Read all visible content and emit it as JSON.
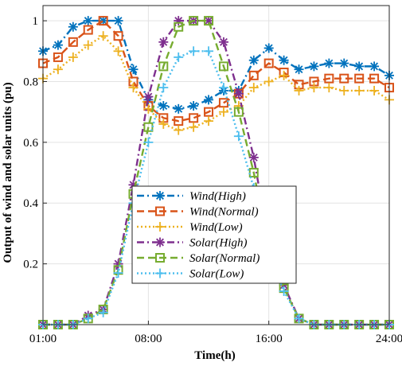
{
  "chart_data": {
    "type": "line",
    "xlabel": "Time(h)",
    "ylabel": "Output of wind and solar units (pu)",
    "x": [
      1,
      2,
      3,
      4,
      5,
      6,
      7,
      8,
      9,
      10,
      11,
      12,
      13,
      14,
      15,
      16,
      17,
      18,
      19,
      20,
      21,
      22,
      23,
      24
    ],
    "xlim": [
      1,
      24
    ],
    "ylim": [
      0,
      1.05
    ],
    "xticks": [
      {
        "value": 1,
        "label": "01:00"
      },
      {
        "value": 8,
        "label": "08:00"
      },
      {
        "value": 16,
        "label": "16:00"
      },
      {
        "value": 24,
        "label": "24:00"
      }
    ],
    "yticks": [
      {
        "value": 0.2,
        "label": "0.2"
      },
      {
        "value": 0.4,
        "label": "0.4"
      },
      {
        "value": 0.6,
        "label": "0.6"
      },
      {
        "value": 0.8,
        "label": "0.8"
      },
      {
        "value": 1,
        "label": "1"
      }
    ],
    "grid": true,
    "legend_position": "center-left",
    "series": [
      {
        "name": "Wind(High)",
        "color": "#0072BD",
        "dash": "dash-dot",
        "marker": "asterisk",
        "values": [
          0.9,
          0.92,
          0.98,
          1.0,
          1.0,
          1.0,
          0.84,
          0.74,
          0.72,
          0.71,
          0.72,
          0.74,
          0.77,
          0.77,
          0.87,
          0.91,
          0.87,
          0.84,
          0.85,
          0.86,
          0.86,
          0.85,
          0.85,
          0.82
        ]
      },
      {
        "name": "Wind(Normal)",
        "color": "#D95319",
        "dash": "dash",
        "marker": "square",
        "values": [
          0.86,
          0.88,
          0.93,
          0.97,
          1.0,
          0.95,
          0.8,
          0.72,
          0.68,
          0.67,
          0.68,
          0.7,
          0.73,
          0.76,
          0.82,
          0.86,
          0.83,
          0.79,
          0.8,
          0.81,
          0.81,
          0.81,
          0.81,
          0.78
        ]
      },
      {
        "name": "Wind(Low)",
        "color": "#EDB120",
        "dash": "dot",
        "marker": "plus",
        "values": [
          0.81,
          0.84,
          0.88,
          0.92,
          0.95,
          0.9,
          0.78,
          0.71,
          0.66,
          0.64,
          0.65,
          0.67,
          0.7,
          0.72,
          0.78,
          0.8,
          0.82,
          0.77,
          0.78,
          0.78,
          0.77,
          0.77,
          0.77,
          0.74
        ]
      },
      {
        "name": "Solar(High)",
        "color": "#7E2F8E",
        "dash": "dash-dot",
        "marker": "asterisk",
        "values": [
          0,
          0,
          0,
          0.03,
          0.05,
          0.2,
          0.46,
          0.75,
          0.93,
          1.0,
          1.0,
          1.0,
          0.93,
          0.76,
          0.55,
          0.27,
          0.13,
          0.02,
          0,
          0,
          0,
          0,
          0,
          0
        ]
      },
      {
        "name": "Solar(Normal)",
        "color": "#77AC30",
        "dash": "dash",
        "marker": "square",
        "values": [
          0,
          0,
          0,
          0.02,
          0.05,
          0.18,
          0.43,
          0.65,
          0.85,
          0.98,
          1.0,
          1.0,
          0.85,
          0.7,
          0.5,
          0.25,
          0.12,
          0.02,
          0,
          0,
          0,
          0,
          0,
          0
        ]
      },
      {
        "name": "Solar(Low)",
        "color": "#4DBEEE",
        "dash": "dot",
        "marker": "plus",
        "values": [
          0,
          0,
          0,
          0.02,
          0.04,
          0.17,
          0.4,
          0.6,
          0.78,
          0.88,
          0.9,
          0.9,
          0.78,
          0.62,
          0.45,
          0.23,
          0.11,
          0.02,
          0,
          0,
          0,
          0,
          0,
          0
        ]
      }
    ]
  }
}
